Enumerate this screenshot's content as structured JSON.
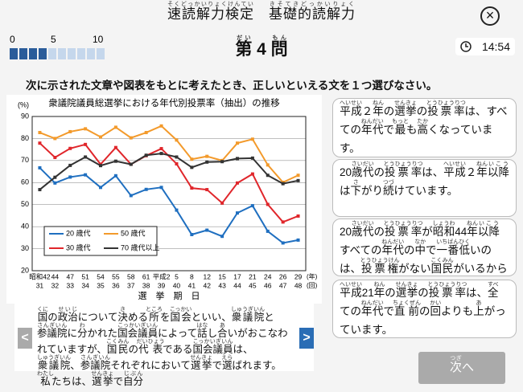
{
  "header": {
    "title": [
      [
        "速読解力検定",
        "そくどっかいりょくけんてい"
      ],
      "　",
      [
        "基礎的読解力",
        "きそてきどっかいりょく"
      ]
    ],
    "close": "×"
  },
  "progress": {
    "labels": [
      0,
      5,
      10
    ],
    "filled": 4,
    "total": 10
  },
  "question": [
    [
      "第",
      "だい"
    ],
    " 4 ",
    [
      "問",
      "もん"
    ]
  ],
  "timer": "14:54",
  "instruction": "次に示された文章や図表をもとに考えたとき、正しいといえる文を１つ選びなさい。",
  "chart_data": {
    "type": "line",
    "title": "衆議院議員総選挙における年代別投票率（抽出）の推移",
    "y_unit": "(%)",
    "x_unit": "(年)",
    "session_unit": "(回)",
    "x_label": "選　挙　期　日",
    "categories": [
      "昭和42",
      "44",
      "47",
      "51",
      "54",
      "55",
      "58",
      "61",
      "平成2",
      "5",
      "8",
      "12",
      "15",
      "17",
      "21",
      "24",
      "26",
      "29"
    ],
    "sessions": [
      "31",
      "32",
      "33",
      "34",
      "35",
      "36",
      "37",
      "38",
      "39",
      "40",
      "41",
      "42",
      "43",
      "44",
      "45",
      "46",
      "47",
      "48"
    ],
    "ylim": [
      20,
      90
    ],
    "yticks": [
      20,
      30,
      40,
      50,
      60,
      70,
      80,
      90
    ],
    "grid": true,
    "series": [
      {
        "name": "20 歳代",
        "color": "#1f6fc0",
        "values": [
          66.7,
          59.8,
          62.5,
          63.5,
          57.8,
          63.1,
          54.1,
          56.9,
          57.8,
          47.5,
          36.4,
          38.4,
          35.6,
          46.2,
          49.5,
          37.9,
          32.6,
          33.9
        ]
      },
      {
        "name": "50 歳代",
        "color": "#f39a2b",
        "values": [
          82.7,
          80.0,
          83.1,
          84.4,
          80.7,
          85.1,
          80.3,
          82.7,
          85.7,
          79.3,
          70.6,
          71.9,
          70.0,
          77.9,
          79.7,
          68.0,
          60.1,
          63.3
        ]
      },
      {
        "name": "30 歳代",
        "color": "#e0262b",
        "values": [
          77.9,
          71.4,
          75.5,
          77.3,
          68.3,
          75.9,
          68.3,
          72.2,
          75.4,
          68.5,
          57.5,
          56.8,
          50.7,
          59.8,
          63.9,
          50.1,
          42.1,
          44.8
        ]
      },
      {
        "name": "70 歳代以上",
        "color": "#333333",
        "values": [
          56.8,
          62.4,
          67.8,
          71.6,
          67.7,
          69.7,
          68.3,
          72.4,
          73.2,
          71.6,
          66.9,
          69.3,
          69.5,
          70.9,
          71.1,
          63.3,
          59.5,
          60.9
        ]
      }
    ]
  },
  "passage": {
    "prev": "<",
    "next": ">",
    "text": [
      [
        "国",
        "くに"
      ],
      "の",
      [
        "政治",
        "せいじ"
      ],
      "について",
      [
        "決",
        "き"
      ],
      "める",
      [
        "所",
        "ところ"
      ],
      "を",
      [
        "国会",
        "こっかい"
      ],
      "といい、",
      [
        "衆議院",
        "しゅうぎいん"
      ],
      "と",
      [
        "参議院",
        "さんぎいん"
      ],
      "に",
      [
        "分",
        "わ"
      ],
      "かれた",
      [
        "国会議員",
        "こっかいぎいん"
      ],
      "によって",
      [
        "話",
        "はな"
      ],
      "し",
      [
        "合",
        "あ"
      ],
      "いがおこなわれていますが、",
      [
        "国民",
        "こくみん"
      ],
      "の",
      [
        "代表",
        "だいひょう"
      ],
      "である",
      [
        "国会議員",
        "こっかいぎいん"
      ],
      "は、",
      [
        "衆議院",
        "しゅうぎいん"
      ],
      "、",
      [
        "参議院",
        "さんぎいん"
      ],
      "それぞれにおいて",
      [
        "選挙",
        "せんきょ"
      ],
      "で",
      [
        "選",
        "えら"
      ],
      "ばれます。",
      [
        "私",
        "わたし"
      ],
      "たちは、",
      [
        "選挙",
        "せんきょ"
      ],
      "で",
      [
        "自分",
        "じぶん"
      ]
    ]
  },
  "options": [
    [
      [
        "平成",
        "へいせい"
      ],
      "２",
      [
        "年",
        "ねん"
      ],
      "の",
      [
        "選挙",
        "せんきょ"
      ],
      "の",
      [
        "投票率",
        "とうひょうりつ"
      ],
      "は、すべての",
      [
        "年代",
        "ねんだい"
      ],
      "で",
      [
        "最",
        "もっと"
      ],
      "も",
      [
        "高",
        "たか"
      ],
      "くなっています。"
    ],
    [
      "20",
      [
        "歳代",
        "さいだい"
      ],
      "の",
      [
        "投票率",
        "とうひょうりつ"
      ],
      "は、",
      [
        "平成",
        "へいせい"
      ],
      "２",
      [
        "年",
        "ねん"
      ],
      [
        "以降",
        "いこう"
      ],
      "は",
      [
        "下",
        "さ"
      ],
      "がり",
      [
        "続",
        "つづ"
      ],
      "けています。"
    ],
    [
      "20",
      [
        "歳代",
        "さいだい"
      ],
      "の",
      [
        "投票率",
        "とうひょうりつ"
      ],
      "が",
      [
        "昭和",
        "しょうわ"
      ],
      "44",
      [
        "年",
        "ねん"
      ],
      [
        "以降",
        "いこう"
      ],
      "すべての",
      [
        "年代",
        "ねんだい"
      ],
      "の",
      [
        "中",
        "なか"
      ],
      "で",
      [
        "一番",
        "いちばん"
      ],
      [
        "低",
        "ひく"
      ],
      "いのは、",
      [
        "投票権",
        "とうひょうけん"
      ],
      "がない",
      [
        "国民",
        "こくみん"
      ],
      "がいるからです。"
    ],
    [
      [
        "平成",
        "へいせい"
      ],
      "21",
      [
        "年",
        "ねん"
      ],
      "の",
      [
        "選挙",
        "せんきょ"
      ],
      "の",
      [
        "投票率",
        "とうひょうりつ"
      ],
      "は、",
      [
        "全",
        "すべ"
      ],
      "ての",
      [
        "年代",
        "ねんだい"
      ],
      "で",
      [
        "直前",
        "ちょくぜん"
      ],
      "の",
      [
        "回",
        "かい"
      ],
      "よりも",
      [
        "上",
        "あ"
      ],
      "がっています。"
    ]
  ],
  "next_button": [
    [
      "次",
      "つぎ"
    ],
    "へ"
  ]
}
